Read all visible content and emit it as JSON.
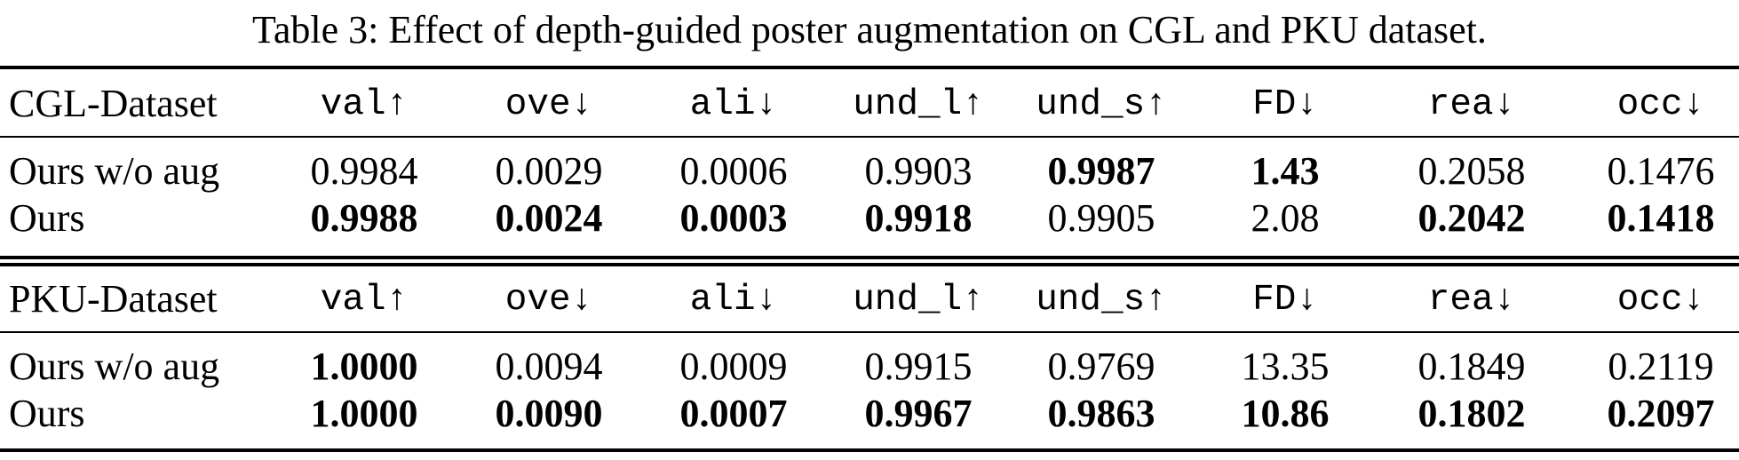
{
  "caption": "Table 3: Effect of depth-guided poster augmentation on CGL and PKU dataset.",
  "columns": [
    "val↑",
    "ove↓",
    "ali↓",
    "und_l↑",
    "und_s↑",
    "FD↓",
    "rea↓",
    "occ↓"
  ],
  "sections": [
    {
      "title": "CGL-Dataset",
      "rows": [
        {
          "label": "Ours w/o aug",
          "values": [
            "0.9984",
            "0.0029",
            "0.0006",
            "0.9903",
            "0.9987",
            "1.43",
            "0.2058",
            "0.1476"
          ],
          "bold": [
            false,
            false,
            false,
            false,
            true,
            true,
            false,
            false
          ]
        },
        {
          "label": "Ours",
          "values": [
            "0.9988",
            "0.0024",
            "0.0003",
            "0.9918",
            "0.9905",
            "2.08",
            "0.2042",
            "0.1418"
          ],
          "bold": [
            true,
            true,
            true,
            true,
            false,
            false,
            true,
            true
          ]
        }
      ]
    },
    {
      "title": "PKU-Dataset",
      "rows": [
        {
          "label": "Ours w/o aug",
          "values": [
            "1.0000",
            "0.0094",
            "0.0009",
            "0.9915",
            "0.9769",
            "13.35",
            "0.1849",
            "0.2119"
          ],
          "bold": [
            true,
            false,
            false,
            false,
            false,
            false,
            false,
            false
          ]
        },
        {
          "label": "Ours",
          "values": [
            "1.0000",
            "0.0090",
            "0.0007",
            "0.9967",
            "0.9863",
            "10.86",
            "0.1802",
            "0.2097"
          ],
          "bold": [
            true,
            true,
            true,
            true,
            true,
            true,
            true,
            true
          ]
        }
      ]
    }
  ]
}
